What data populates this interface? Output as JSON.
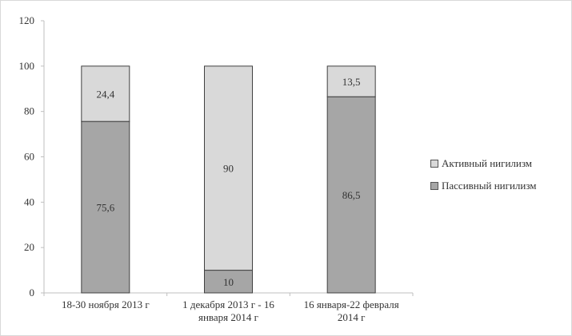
{
  "chart_data": {
    "type": "bar",
    "stacked": true,
    "categories": [
      [
        "18-30  ноября 2013  г"
      ],
      [
        "1 декабря 2013  г - 16",
        "января 2014  г"
      ],
      [
        "16 января-22 февраля",
        "2014  г"
      ]
    ],
    "series": [
      {
        "name": "Пассивный нигилизм",
        "values": [
          75.6,
          10,
          86.5
        ],
        "labels": [
          "75,6",
          "10",
          "86,5"
        ],
        "color": "#a6a6a6"
      },
      {
        "name": "Активный нигилизм",
        "values": [
          24.4,
          90,
          13.5
        ],
        "labels": [
          "24,4",
          "90",
          "13,5"
        ],
        "color": "#d9d9d9"
      }
    ],
    "ylim": [
      0,
      120
    ],
    "yticks": [
      0,
      20,
      40,
      60,
      80,
      100,
      120
    ],
    "grid": false,
    "legend_position": "right",
    "xlabel": "",
    "ylabel": "",
    "title": ""
  }
}
